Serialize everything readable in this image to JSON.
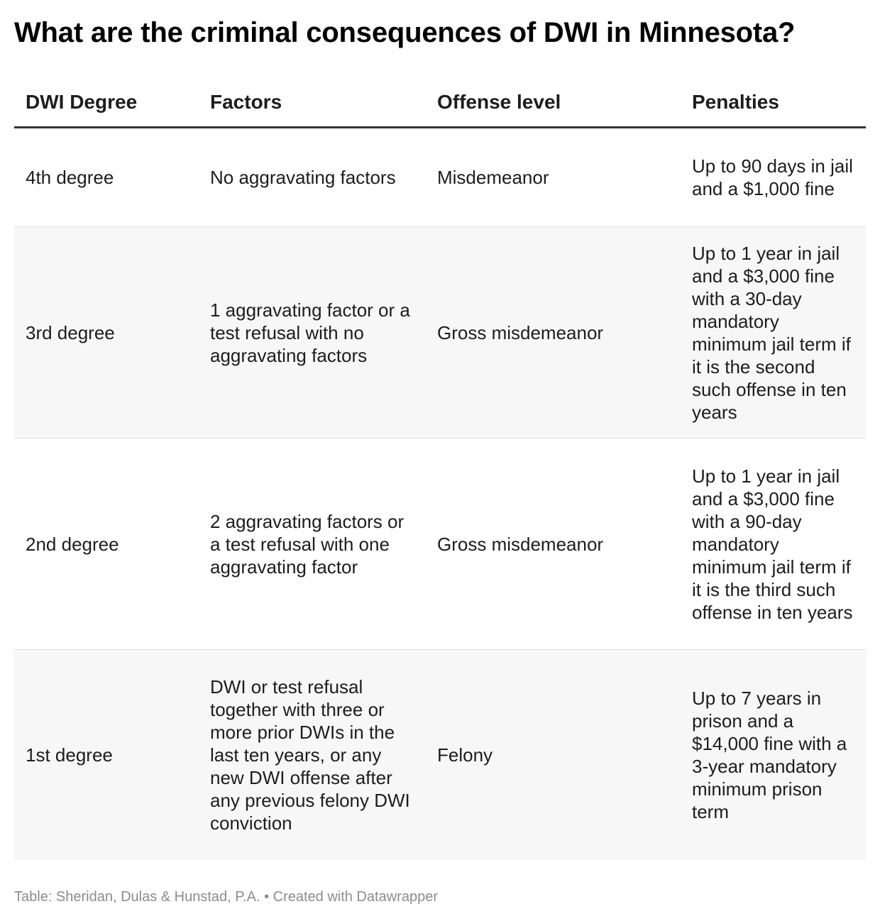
{
  "title": "What are the criminal consequences of DWI in Minnesota?",
  "columns": [
    "DWI Degree",
    "Factors",
    "Offense level",
    "Penalties"
  ],
  "rows": [
    {
      "degree": "4th degree",
      "factors": "No aggravating factors",
      "offense": "Misdemeanor",
      "penalties": "Up to 90 days in jail and a $1,000 fine"
    },
    {
      "degree": "3rd degree",
      "factors": "1 aggravating factor or a test refusal with no aggravating factors",
      "offense": "Gross misdemeanor",
      "penalties": "Up to 1 year in jail and a $3,000 fine with a 30-day mandatory minimum jail term if it is the second such offense in ten years"
    },
    {
      "degree": "2nd degree",
      "factors": "2 aggravating factors or a test refusal with one aggravating factor",
      "offense": "Gross misdemeanor",
      "penalties": "Up to 1 year in jail and a $3,000 fine with a 90-day mandatory minimum jail term if it is the third such offense in ten years"
    },
    {
      "degree": "1st degree",
      "factors": "DWI or test refusal together with three or more prior DWIs in the last ten years, or any new DWI offense after any previous felony DWI conviction",
      "offense": "Felony",
      "penalties": "Up to 7 years in prison and a $14,000 fine with a 3-year mandatory minimum prison term"
    }
  ],
  "footer": {
    "source": "Table: Sheridan, Dulas & Hunstad, P.A.",
    "separator": "•",
    "credit": "Created with Datawrapper"
  },
  "colors": {
    "header_rule": "#333333",
    "row_shade": "#f7f7f7",
    "row_divider": "#e0e0e0",
    "footer_text": "#8c8c8c"
  }
}
